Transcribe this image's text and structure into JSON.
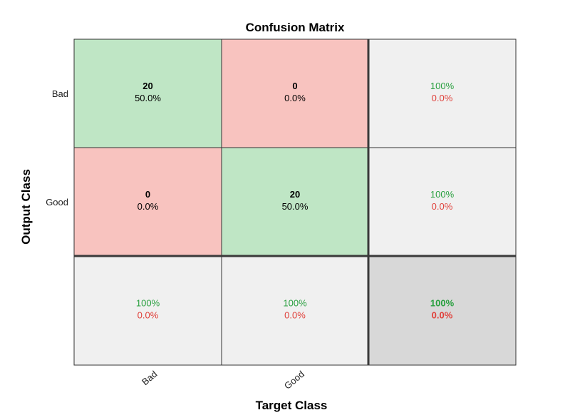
{
  "chart_data": {
    "type": "heatmap",
    "title": "Confusion Matrix",
    "xlabel": "Target Class",
    "ylabel": "Output Class",
    "x_tick_labels": [
      "Bad",
      "Good"
    ],
    "y_tick_labels": [
      "Bad",
      "Good"
    ],
    "matrix": [
      [
        {
          "count": "20",
          "percent": "50.0%"
        },
        {
          "count": "0",
          "percent": "0.0%"
        }
      ],
      [
        {
          "count": "0",
          "percent": "0.0%"
        },
        {
          "count": "20",
          "percent": "50.0%"
        }
      ]
    ],
    "row_summary": [
      {
        "correct": "100%",
        "incorrect": "0.0%"
      },
      {
        "correct": "100%",
        "incorrect": "0.0%"
      }
    ],
    "column_summary": [
      {
        "correct": "100%",
        "incorrect": "0.0%"
      },
      {
        "correct": "100%",
        "incorrect": "0.0%"
      }
    ],
    "overall": {
      "correct": "100%",
      "incorrect": "0.0%"
    },
    "colors": {
      "correct_cell": "#bfe6c5",
      "incorrect_cell": "#f8c3bf",
      "summary_cell": "#f0f0f0",
      "overall_cell": "#d8d8d8",
      "correct_text": "#2aa040",
      "incorrect_text": "#e0403a"
    }
  }
}
